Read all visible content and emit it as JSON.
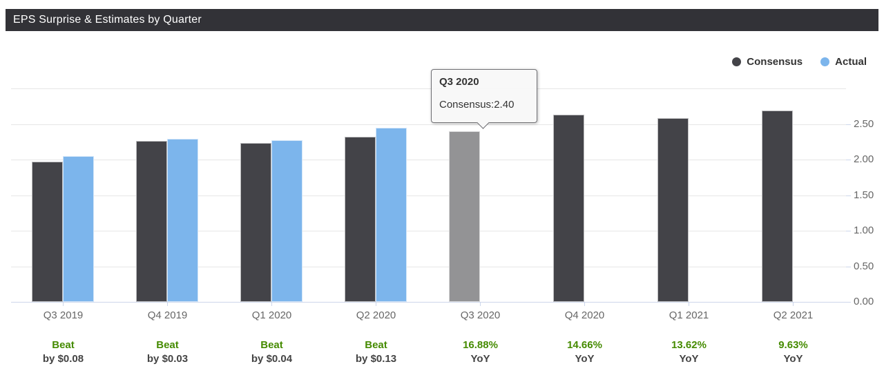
{
  "header": {
    "title": "EPS Surprise & Estimates by Quarter"
  },
  "legend": {
    "items": [
      {
        "label": "Consensus",
        "color": "#434348"
      },
      {
        "label": "Actual",
        "color": "#7cb5ec"
      }
    ]
  },
  "tooltip": {
    "title": "Q3 2020",
    "body": "Consensus:2.40"
  },
  "chart_data": {
    "type": "bar",
    "title": "EPS Surprise & Estimates by Quarter",
    "categories": [
      "Q3 2019",
      "Q4 2019",
      "Q1 2020",
      "Q2 2020",
      "Q3 2020",
      "Q4 2020",
      "Q1 2021",
      "Q2 2021"
    ],
    "series": [
      {
        "name": "Consensus",
        "color": "#434348",
        "values": [
          1.97,
          2.26,
          2.23,
          2.32,
          2.4,
          2.63,
          2.58,
          2.69
        ]
      },
      {
        "name": "Actual",
        "color": "#7cb5ec",
        "values": [
          2.05,
          2.29,
          2.27,
          2.45,
          null,
          null,
          null,
          null
        ]
      }
    ],
    "highlight": {
      "index": 4,
      "category": "Q3 2020",
      "series": "Consensus",
      "color": "#939395",
      "state": "hovered"
    },
    "yaxis": {
      "position": "right",
      "ylim": [
        0,
        3.0
      ],
      "gridlines": [
        {
          "value": 3.0,
          "label": ""
        },
        {
          "value": 2.5,
          "label": "2.50"
        },
        {
          "value": 2.0,
          "label": "2.00"
        },
        {
          "value": 1.5,
          "label": "1.50"
        },
        {
          "value": 1.0,
          "label": "1.00"
        },
        {
          "value": 0.5,
          "label": "0.50"
        },
        {
          "value": 0.0,
          "label": "0.00"
        }
      ]
    },
    "grid": true,
    "legend_position": "top-right",
    "annotations": [
      {
        "line1": "Beat",
        "line2": "by $0.08"
      },
      {
        "line1": "Beat",
        "line2": "by $0.03"
      },
      {
        "line1": "Beat",
        "line2": "by $0.04"
      },
      {
        "line1": "Beat",
        "line2": "by $0.13"
      },
      {
        "line1": "16.88%",
        "line2": "YoY"
      },
      {
        "line1": "14.66%",
        "line2": "YoY"
      },
      {
        "line1": "13.62%",
        "line2": "YoY"
      },
      {
        "line1": "9.63%",
        "line2": "YoY"
      }
    ]
  },
  "colors": {
    "header_bg": "#323237",
    "header_text": "#ffffff",
    "grid": "#e6e6e6",
    "axis": "#ccd6eb",
    "tick_label": "#666666",
    "legend_text": "#333333",
    "annotation_green": "#458b00",
    "annotation_dark": "#444444"
  }
}
